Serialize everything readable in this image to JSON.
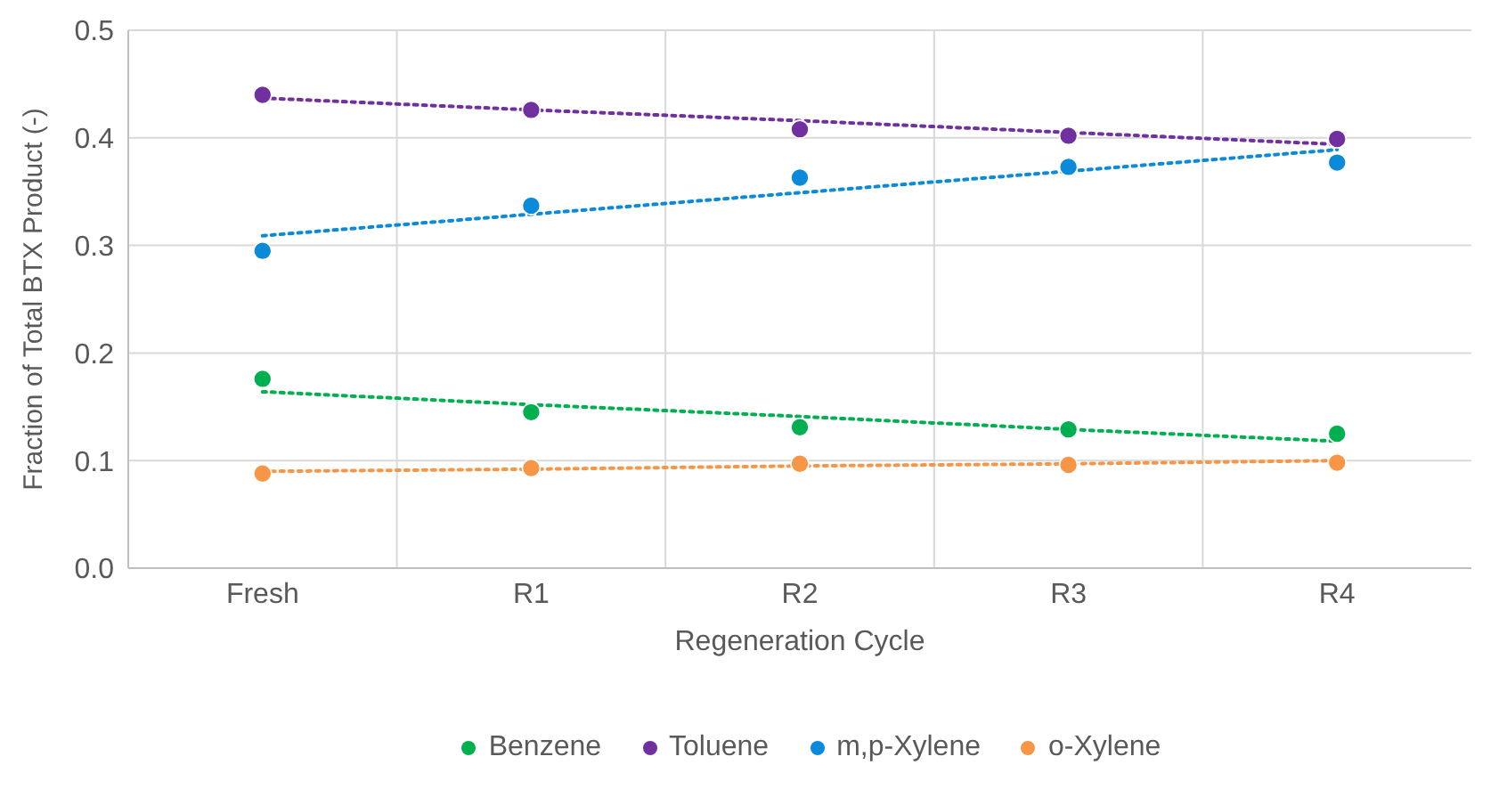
{
  "chart_data": {
    "type": "scatter",
    "xlabel": "Regeneration Cycle",
    "ylabel": "Fraction of Total BTX Product (-)",
    "categories": [
      "Fresh",
      "R1",
      "R2",
      "R3",
      "R4"
    ],
    "series": [
      {
        "name": "Benzene",
        "color": "#00b050",
        "values": [
          0.176,
          0.145,
          0.131,
          0.129,
          0.125
        ]
      },
      {
        "name": "Toluene",
        "color": "#7030a0",
        "values": [
          0.44,
          0.426,
          0.408,
          0.402,
          0.399
        ]
      },
      {
        "name": "m,p-Xylene",
        "color": "#0a8ad8",
        "values": [
          0.295,
          0.337,
          0.363,
          0.373,
          0.377
        ]
      },
      {
        "name": "o-Xylene",
        "color": "#f79646",
        "values": [
          0.088,
          0.093,
          0.097,
          0.096,
          0.098
        ]
      },
      {
        "type": "line",
        "color": "#00b050",
        "line_style": "dotted",
        "marker": "none",
        "values": [
          0.164,
          0.152,
          0.141,
          0.129,
          0.118
        ]
      },
      {
        "type": "line",
        "color": "#7030a0",
        "line_style": "dotted",
        "marker": "none",
        "values": [
          0.437,
          0.426,
          0.416,
          0.405,
          0.394
        ]
      },
      {
        "type": "line",
        "color": "#0a8ad8",
        "line_style": "dotted",
        "marker": "none",
        "values": [
          0.309,
          0.329,
          0.349,
          0.369,
          0.389
        ]
      },
      {
        "type": "line",
        "color": "#f79646",
        "line_style": "dotted",
        "marker": "none",
        "values": [
          0.09,
          0.092,
          0.095,
          0.097,
          0.1
        ]
      }
    ],
    "ylim": [
      0,
      0.5
    ],
    "yticks": [
      {
        "value": 0,
        "label": "0.0"
      },
      {
        "value": 0.1,
        "label": "0.1"
      },
      {
        "value": 0.2,
        "label": "0.2"
      },
      {
        "value": 0.3,
        "label": "0.3"
      },
      {
        "value": 0.4,
        "label": "0.4"
      },
      {
        "value": 0.5,
        "label": "0.5"
      }
    ],
    "grid": true,
    "legend": "bottom",
    "marker": "circle"
  }
}
